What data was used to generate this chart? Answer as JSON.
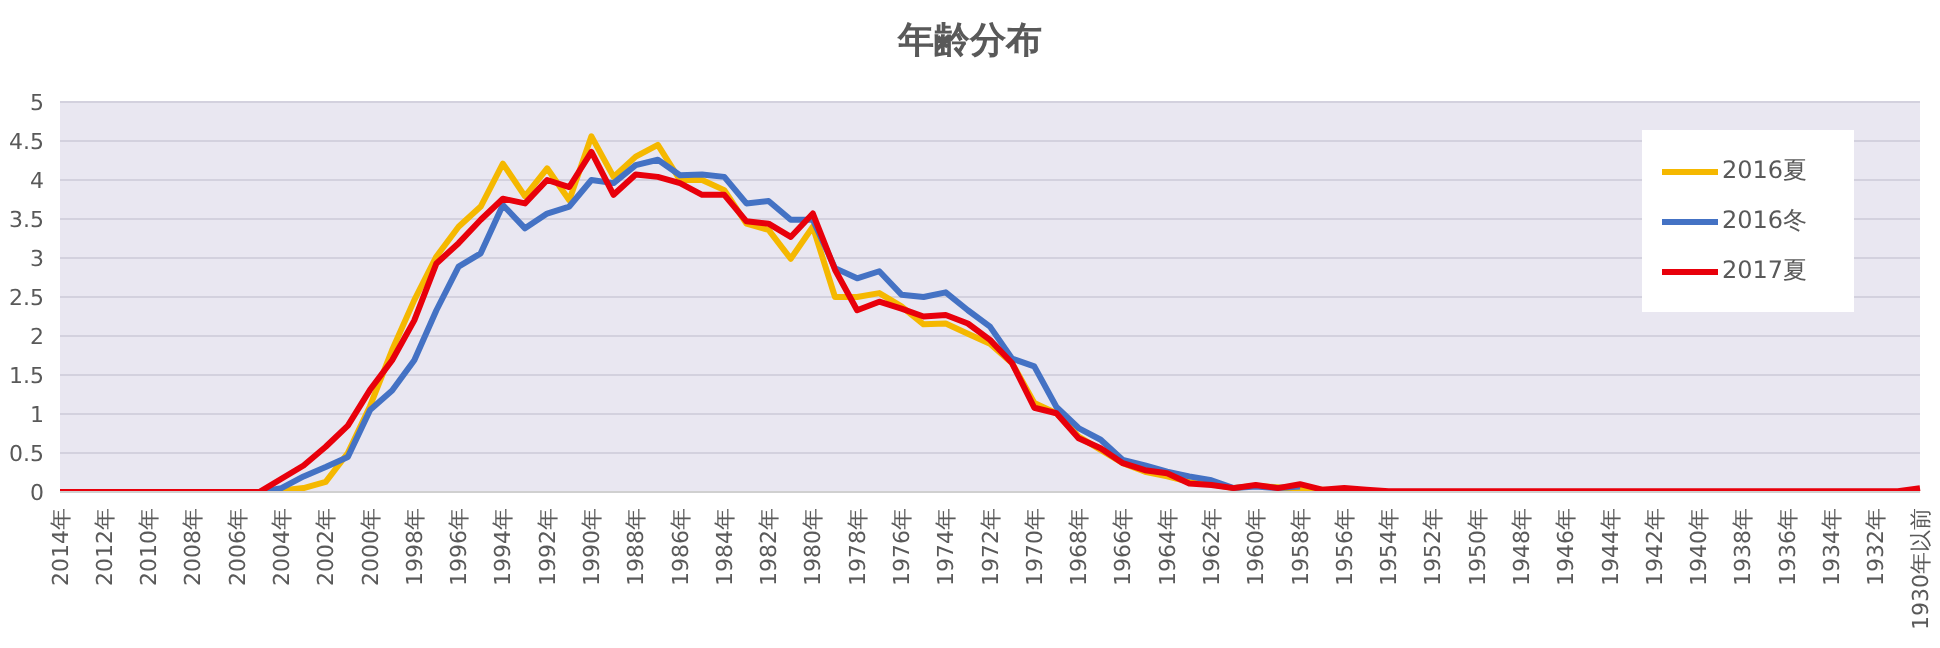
{
  "chart_data": {
    "type": "line",
    "title": "年齢分布",
    "categories": [
      "2014年",
      null,
      "2012年",
      null,
      "2010年",
      null,
      "2008年",
      null,
      "2006年",
      null,
      "2004年",
      null,
      "2002年",
      null,
      "2000年",
      null,
      "1998年",
      null,
      "1996年",
      null,
      "1994年",
      null,
      "1992年",
      null,
      "1990年",
      null,
      "1988年",
      null,
      "1986年",
      null,
      "1984年",
      null,
      "1982年",
      null,
      "1980年",
      null,
      "1978年",
      null,
      "1976年",
      null,
      "1974年",
      null,
      "1972年",
      null,
      "1970年",
      null,
      "1968年",
      null,
      "1966年",
      null,
      "1964年",
      null,
      "1962年",
      null,
      "1960年",
      null,
      "1958年",
      null,
      "1956年",
      null,
      "1954年",
      null,
      "1952年",
      null,
      "1950年",
      null,
      "1948年",
      null,
      "1946年",
      null,
      "1944年",
      null,
      "1942年",
      null,
      "1940年",
      null,
      "1938年",
      null,
      "1936年",
      null,
      "1934年",
      null,
      "1932年",
      null,
      "1930年以前"
    ],
    "series": [
      {
        "name": "2016夏",
        "color": "#f5b800",
        "values": [
          null,
          null,
          null,
          null,
          null,
          null,
          null,
          null,
          null,
          0,
          0.02,
          0.05,
          0.13,
          0.5,
          1.1,
          1.82,
          2.46,
          3.02,
          3.4,
          3.66,
          4.21,
          3.79,
          4.15,
          3.74,
          4.56,
          4.04,
          4.3,
          4.45,
          4.0,
          4.0,
          3.87,
          3.44,
          3.36,
          2.99,
          3.4,
          2.5,
          2.5,
          2.55,
          2.38,
          2.15,
          2.16,
          2.03,
          1.9,
          1.65,
          1.14,
          1.01,
          0.71,
          0.54,
          0.37,
          0.26,
          0.2,
          0.13,
          0.1,
          0.05,
          0.08,
          0.06,
          0.03,
          0.03,
          0.02,
          null,
          null,
          null,
          null,
          null,
          null,
          null,
          null,
          null,
          null,
          null,
          null,
          null,
          null,
          null,
          null,
          null,
          null,
          null,
          null,
          null,
          null,
          null,
          null,
          null,
          null
        ]
      },
      {
        "name": "2016冬",
        "color": "#4472c4",
        "values": [
          null,
          null,
          null,
          null,
          null,
          null,
          null,
          null,
          0,
          0,
          0.05,
          0.2,
          0.32,
          0.45,
          1.05,
          1.3,
          1.69,
          2.33,
          2.89,
          3.06,
          3.68,
          3.38,
          3.57,
          3.66,
          4.0,
          3.96,
          4.19,
          4.26,
          4.06,
          4.07,
          4.04,
          3.7,
          3.73,
          3.49,
          3.49,
          2.87,
          2.74,
          2.83,
          2.53,
          2.5,
          2.56,
          2.33,
          2.12,
          1.71,
          1.61,
          1.09,
          0.82,
          0.67,
          0.41,
          0.34,
          0.26,
          0.2,
          0.15,
          0.05,
          0.07,
          0.05,
          0.07,
          null,
          null,
          null,
          null,
          null,
          null,
          null,
          null,
          null,
          null,
          null,
          null,
          null,
          null,
          null,
          null,
          null,
          null,
          null,
          null,
          null,
          null,
          null,
          null,
          null,
          null,
          null,
          null
        ]
      },
      {
        "name": "2017夏",
        "color": "#e8000b",
        "values": [
          0,
          0,
          0,
          0,
          0,
          0,
          0,
          0,
          0,
          0,
          0.17,
          0.34,
          0.58,
          0.85,
          1.31,
          1.69,
          2.2,
          2.93,
          3.19,
          3.49,
          3.76,
          3.7,
          4.0,
          3.91,
          4.36,
          3.81,
          4.07,
          4.04,
          3.96,
          3.81,
          3.81,
          3.47,
          3.44,
          3.27,
          3.57,
          2.85,
          2.33,
          2.44,
          2.35,
          2.25,
          2.27,
          2.16,
          1.95,
          1.65,
          1.08,
          1.01,
          0.69,
          0.56,
          0.37,
          0.28,
          0.24,
          0.11,
          0.09,
          0.05,
          0.09,
          0.05,
          0.1,
          0.03,
          0.05,
          0.03,
          0.01,
          0.01,
          0.01,
          0.01,
          0.01,
          0.01,
          0.01,
          0.01,
          0.01,
          0.01,
          0.01,
          0.01,
          0.01,
          0.01,
          0.01,
          0.01,
          0.01,
          0.01,
          0.01,
          0.01,
          0.01,
          0.01,
          0.01,
          0.01,
          0.05
        ]
      }
    ],
    "ylim": [
      0,
      5
    ],
    "yticks": [
      0,
      0.5,
      1,
      1.5,
      2,
      2.5,
      3,
      3.5,
      4,
      4.5,
      5
    ],
    "grid": "y",
    "legend": "top right"
  }
}
